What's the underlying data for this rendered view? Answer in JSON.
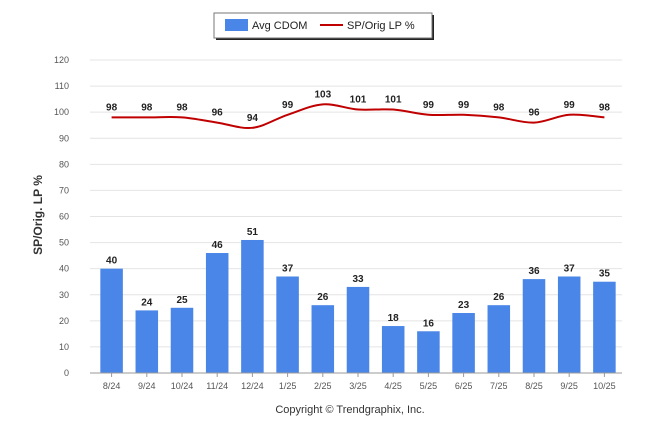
{
  "chart_data": {
    "type": "bar",
    "categories": [
      "8/24",
      "9/24",
      "10/24",
      "11/24",
      "12/24",
      "1/25",
      "2/25",
      "3/25",
      "4/25",
      "5/25",
      "6/25",
      "7/25",
      "8/25",
      "9/25",
      "10/25"
    ],
    "series": [
      {
        "name": "Avg CDOM",
        "type": "bar",
        "color": "#4a86e8",
        "values": [
          40,
          24,
          25,
          46,
          51,
          37,
          26,
          33,
          18,
          16,
          23,
          26,
          36,
          37,
          35
        ]
      },
      {
        "name": "SP/Orig LP %",
        "type": "line",
        "color": "#c00000",
        "values": [
          98,
          98,
          98,
          96,
          94,
          99,
          103,
          101,
          101,
          99,
          99,
          98,
          96,
          99,
          98
        ]
      }
    ],
    "ylabel": "SP/Orig. LP %",
    "ylim": [
      0,
      120
    ],
    "yticks": [
      0,
      10,
      20,
      30,
      40,
      50,
      60,
      70,
      80,
      90,
      100,
      110,
      120
    ],
    "grid": true,
    "legend_position": "top-center"
  },
  "footer": {
    "copyright": "Copyright © Trendgraphix, Inc."
  }
}
